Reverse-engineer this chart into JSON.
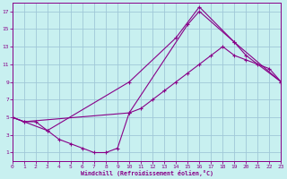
{
  "bg_color": "#c8f0f0",
  "grid_color": "#a0c8d8",
  "line_color": "#880088",
  "xlabel": "Windchill (Refroidissement éolien,°C)",
  "xmin": 0,
  "xmax": 23,
  "ymin": 0,
  "ymax": 18,
  "xticks": [
    0,
    1,
    2,
    3,
    4,
    5,
    6,
    7,
    8,
    9,
    10,
    11,
    12,
    13,
    14,
    15,
    16,
    17,
    18,
    19,
    20,
    21,
    22,
    23
  ],
  "yticks": [
    1,
    3,
    5,
    7,
    9,
    11,
    13,
    15,
    17
  ],
  "line1_x": [
    0,
    1,
    2,
    3,
    4,
    5,
    6,
    7,
    8,
    9,
    10,
    11,
    12,
    13,
    14,
    15,
    16,
    17,
    18,
    19,
    20,
    21,
    22,
    23
  ],
  "line1_y": [
    5,
    4.5,
    4.5,
    3.5,
    2.5,
    2,
    1.5,
    1,
    1,
    1.5,
    5.5,
    6,
    7,
    8,
    9,
    10,
    11,
    12,
    13,
    12,
    11.5,
    11,
    10.5,
    9
  ],
  "line2_x": [
    0,
    3,
    10,
    14,
    16,
    19,
    20,
    23
  ],
  "line2_y": [
    5,
    3.5,
    9,
    14,
    17.5,
    13.5,
    12,
    9
  ],
  "line3_x": [
    0,
    1,
    10,
    15,
    16,
    19,
    23
  ],
  "line3_y": [
    5,
    4.5,
    5.5,
    15.5,
    17,
    13.5,
    9
  ]
}
